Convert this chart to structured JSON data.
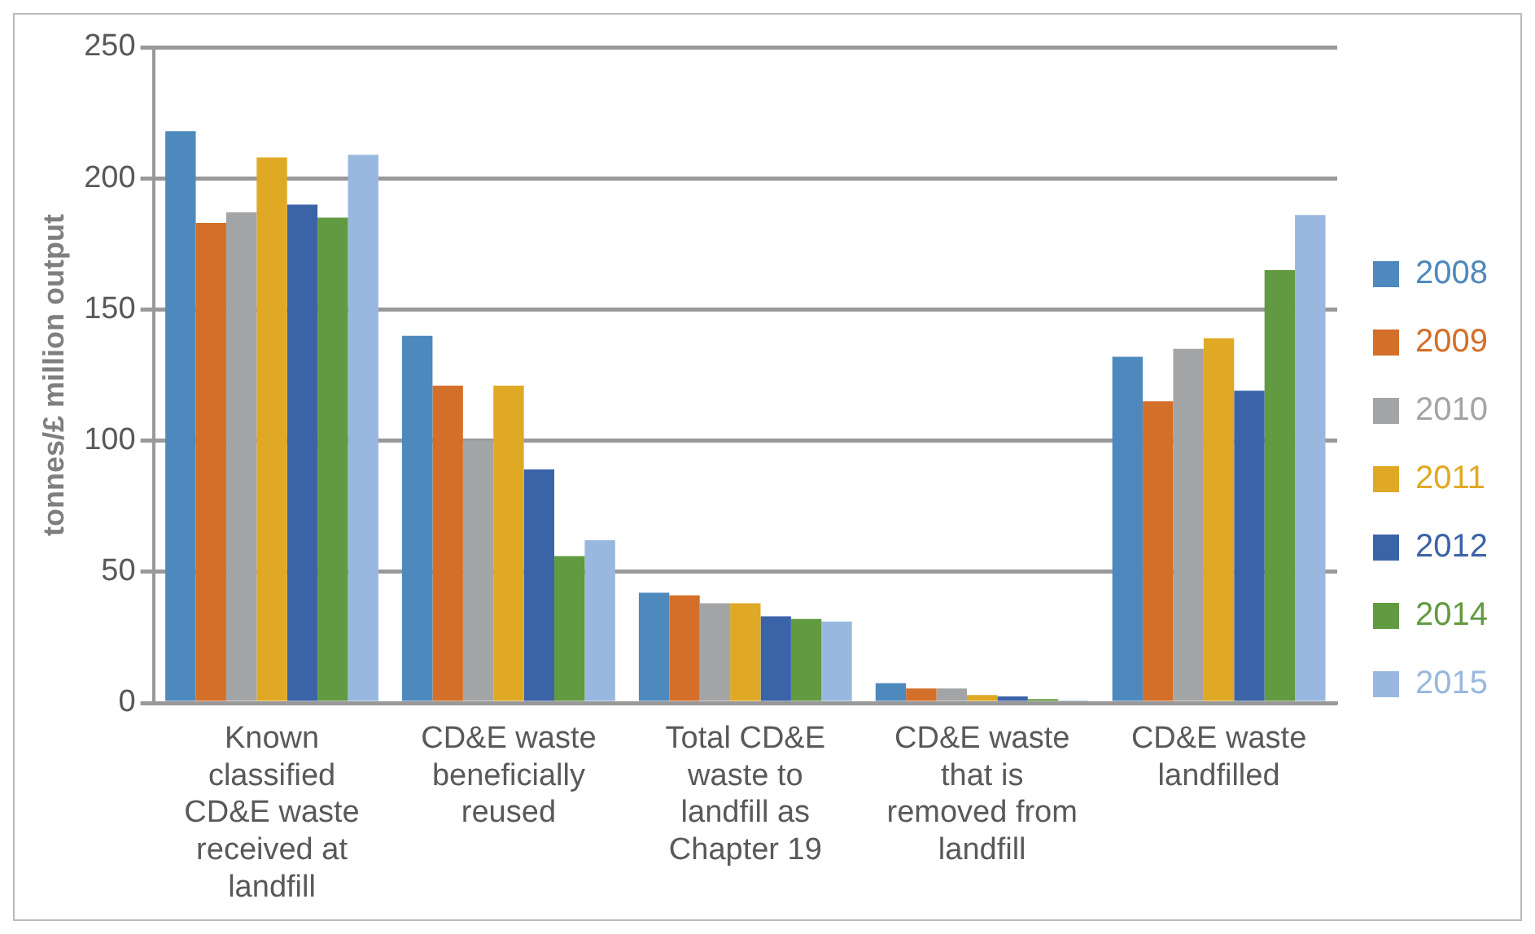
{
  "chart_data": {
    "type": "bar",
    "ylabel": "tonnes/£ million output",
    "categories": [
      "Known classified CD&E waste received at landfill",
      "CD&E waste beneficially reused",
      "Total CD&E waste to landfill as Chapter 19",
      "CD&E waste that is removed from landfill",
      "CD&E waste landfilled"
    ],
    "series": [
      {
        "name": "2008",
        "color": "#4e89bd",
        "values": [
          218,
          140,
          42,
          7.5,
          132
        ]
      },
      {
        "name": "2009",
        "color": "#d46f29",
        "values": [
          183,
          121,
          41,
          5.5,
          115
        ]
      },
      {
        "name": "2010",
        "color": "#a3a4a6",
        "values": [
          187,
          100,
          38,
          5.5,
          135
        ]
      },
      {
        "name": "2011",
        "color": "#e0a925",
        "values": [
          208,
          121,
          38,
          3,
          139
        ]
      },
      {
        "name": "2012",
        "color": "#3b63a8",
        "values": [
          190,
          89,
          33,
          2.5,
          119
        ]
      },
      {
        "name": "2014",
        "color": "#629a41",
        "values": [
          185,
          56,
          32,
          1.5,
          165
        ]
      },
      {
        "name": "2015",
        "color": "#98b8df",
        "values": [
          209,
          62,
          31,
          1,
          186
        ]
      }
    ],
    "ylim": [
      0,
      250
    ],
    "yticks": [
      0,
      50,
      100,
      150,
      200,
      250
    ],
    "grid": "y",
    "legend": "right"
  }
}
